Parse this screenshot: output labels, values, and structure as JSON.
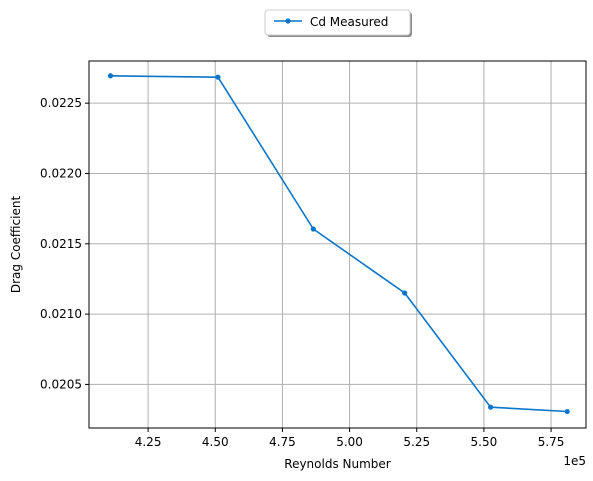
{
  "chart_data": {
    "type": "line",
    "xlabel": "Reynolds Number",
    "ylabel": "Drag Coefficient",
    "x_offset_label": "1e5",
    "xlim": [
      4.03,
      5.88
    ],
    "ylim": [
      0.02019,
      0.0228
    ],
    "x_ticks": [
      4.25,
      4.5,
      4.75,
      5.0,
      5.25,
      5.5,
      5.75
    ],
    "x_tick_labels": [
      "4.25",
      "4.50",
      "4.75",
      "5.00",
      "5.25",
      "5.50",
      "5.75"
    ],
    "y_ticks": [
      0.0205,
      0.021,
      0.0215,
      0.022,
      0.0225
    ],
    "y_tick_labels": [
      "0.0205",
      "0.0210",
      "0.0215",
      "0.0220",
      "0.0225"
    ],
    "grid": true,
    "legend_position": "top-center (above axes)",
    "series": [
      {
        "name": "Cd Measured",
        "color": "#0a75c9",
        "marker": "circle",
        "x": [
          4.11,
          4.51,
          4.865,
          5.205,
          5.525,
          5.81
        ],
        "y": [
          0.022695,
          0.022685,
          0.021605,
          0.02115,
          0.020338,
          0.020307
        ]
      }
    ]
  }
}
